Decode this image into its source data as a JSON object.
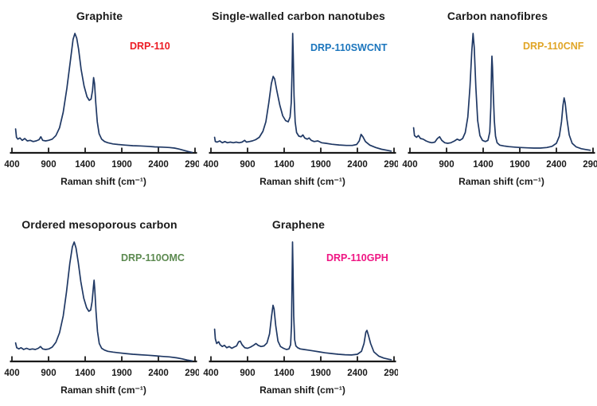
{
  "figure": {
    "background": "#ffffff",
    "curve_color": "#1f3864",
    "axis_color": "#1a1a1a",
    "title_color": "#1a1a1a"
  },
  "chart_data": [
    {
      "type": "line",
      "title": "Graphite",
      "series_label": "DRP-110",
      "series_label_color": "#ec1c24",
      "xlabel": "Raman shift (cm⁻¹)",
      "ylabel": "",
      "x_ticks": [
        400,
        900,
        1400,
        1900,
        2400,
        2900
      ],
      "xlim": [
        400,
        2900
      ],
      "ylim": [
        0,
        1.05
      ],
      "grid": false,
      "points": [
        [
          450,
          0.2
        ],
        [
          462,
          0.13
        ],
        [
          480,
          0.115
        ],
        [
          510,
          0.125
        ],
        [
          540,
          0.105
        ],
        [
          575,
          0.12
        ],
        [
          610,
          0.1
        ],
        [
          650,
          0.105
        ],
        [
          690,
          0.095
        ],
        [
          730,
          0.1
        ],
        [
          770,
          0.11
        ],
        [
          795,
          0.135
        ],
        [
          820,
          0.105
        ],
        [
          860,
          0.1
        ],
        [
          900,
          0.105
        ],
        [
          950,
          0.115
        ],
        [
          1000,
          0.145
        ],
        [
          1050,
          0.21
        ],
        [
          1100,
          0.34
        ],
        [
          1150,
          0.54
        ],
        [
          1200,
          0.78
        ],
        [
          1235,
          0.95
        ],
        [
          1260,
          1.0
        ],
        [
          1285,
          0.96
        ],
        [
          1310,
          0.87
        ],
        [
          1345,
          0.7
        ],
        [
          1385,
          0.56
        ],
        [
          1425,
          0.47
        ],
        [
          1455,
          0.44
        ],
        [
          1480,
          0.45
        ],
        [
          1500,
          0.52
        ],
        [
          1515,
          0.63
        ],
        [
          1528,
          0.58
        ],
        [
          1545,
          0.42
        ],
        [
          1565,
          0.26
        ],
        [
          1590,
          0.16
        ],
        [
          1625,
          0.115
        ],
        [
          1665,
          0.095
        ],
        [
          1710,
          0.085
        ],
        [
          1780,
          0.075
        ],
        [
          1850,
          0.07
        ],
        [
          1950,
          0.065
        ],
        [
          2050,
          0.06
        ],
        [
          2150,
          0.058
        ],
        [
          2250,
          0.055
        ],
        [
          2350,
          0.05
        ],
        [
          2450,
          0.048
        ],
        [
          2550,
          0.045
        ],
        [
          2620,
          0.04
        ],
        [
          2680,
          0.032
        ],
        [
          2740,
          0.022
        ],
        [
          2800,
          0.012
        ],
        [
          2860,
          0.004
        ]
      ]
    },
    {
      "type": "line",
      "title": "Single-walled carbon nanotubes",
      "series_label": "DRP-110SWCNT",
      "series_label_color": "#1c76bd",
      "xlabel": "Raman shift (cm⁻¹)",
      "ylabel": "",
      "x_ticks": [
        400,
        900,
        1400,
        1900,
        2400,
        2900
      ],
      "xlim": [
        400,
        2900
      ],
      "ylim": [
        0,
        1.05
      ],
      "grid": false,
      "points": [
        [
          450,
          0.13
        ],
        [
          460,
          0.095
        ],
        [
          485,
          0.09
        ],
        [
          520,
          0.1
        ],
        [
          555,
          0.085
        ],
        [
          590,
          0.095
        ],
        [
          625,
          0.085
        ],
        [
          665,
          0.09
        ],
        [
          705,
          0.085
        ],
        [
          745,
          0.09
        ],
        [
          785,
          0.085
        ],
        [
          825,
          0.09
        ],
        [
          860,
          0.105
        ],
        [
          885,
          0.09
        ],
        [
          925,
          0.095
        ],
        [
          965,
          0.1
        ],
        [
          1010,
          0.11
        ],
        [
          1060,
          0.13
        ],
        [
          1110,
          0.18
        ],
        [
          1150,
          0.26
        ],
        [
          1190,
          0.42
        ],
        [
          1225,
          0.58
        ],
        [
          1250,
          0.64
        ],
        [
          1270,
          0.62
        ],
        [
          1300,
          0.52
        ],
        [
          1340,
          0.4
        ],
        [
          1380,
          0.31
        ],
        [
          1420,
          0.27
        ],
        [
          1455,
          0.26
        ],
        [
          1480,
          0.3
        ],
        [
          1497,
          0.42
        ],
        [
          1508,
          0.68
        ],
        [
          1516,
          1.0
        ],
        [
          1524,
          0.82
        ],
        [
          1535,
          0.48
        ],
        [
          1550,
          0.26
        ],
        [
          1570,
          0.17
        ],
        [
          1600,
          0.14
        ],
        [
          1630,
          0.135
        ],
        [
          1655,
          0.15
        ],
        [
          1680,
          0.125
        ],
        [
          1715,
          0.115
        ],
        [
          1740,
          0.125
        ],
        [
          1770,
          0.105
        ],
        [
          1810,
          0.095
        ],
        [
          1860,
          0.1
        ],
        [
          1910,
          0.085
        ],
        [
          1970,
          0.08
        ],
        [
          2050,
          0.072
        ],
        [
          2150,
          0.066
        ],
        [
          2250,
          0.062
        ],
        [
          2330,
          0.062
        ],
        [
          2390,
          0.07
        ],
        [
          2425,
          0.1
        ],
        [
          2450,
          0.155
        ],
        [
          2475,
          0.135
        ],
        [
          2510,
          0.095
        ],
        [
          2570,
          0.065
        ],
        [
          2650,
          0.045
        ],
        [
          2730,
          0.03
        ],
        [
          2800,
          0.022
        ],
        [
          2860,
          0.015
        ]
      ]
    },
    {
      "type": "line",
      "title": "Carbon nanofibres",
      "series_label": "DRP-110CNF",
      "series_label_color": "#e0a526",
      "xlabel": "Raman shift (cm⁻¹)",
      "ylabel": "",
      "x_ticks": [
        400,
        900,
        1400,
        1900,
        2400,
        2900
      ],
      "xlim": [
        400,
        2900
      ],
      "ylim": [
        0,
        1.05
      ],
      "grid": false,
      "points": [
        [
          450,
          0.21
        ],
        [
          462,
          0.145
        ],
        [
          490,
          0.13
        ],
        [
          515,
          0.145
        ],
        [
          545,
          0.12
        ],
        [
          580,
          0.115
        ],
        [
          620,
          0.1
        ],
        [
          660,
          0.09
        ],
        [
          700,
          0.085
        ],
        [
          740,
          0.09
        ],
        [
          775,
          0.12
        ],
        [
          805,
          0.135
        ],
        [
          835,
          0.105
        ],
        [
          875,
          0.085
        ],
        [
          915,
          0.08
        ],
        [
          960,
          0.085
        ],
        [
          1010,
          0.1
        ],
        [
          1045,
          0.115
        ],
        [
          1080,
          0.105
        ],
        [
          1120,
          0.12
        ],
        [
          1155,
          0.17
        ],
        [
          1190,
          0.3
        ],
        [
          1220,
          0.55
        ],
        [
          1245,
          0.85
        ],
        [
          1262,
          1.0
        ],
        [
          1278,
          0.88
        ],
        [
          1300,
          0.55
        ],
        [
          1325,
          0.27
        ],
        [
          1355,
          0.145
        ],
        [
          1390,
          0.105
        ],
        [
          1430,
          0.095
        ],
        [
          1465,
          0.105
        ],
        [
          1490,
          0.175
        ],
        [
          1504,
          0.38
        ],
        [
          1514,
          0.7
        ],
        [
          1520,
          0.81
        ],
        [
          1527,
          0.72
        ],
        [
          1538,
          0.5
        ],
        [
          1552,
          0.27
        ],
        [
          1568,
          0.14
        ],
        [
          1590,
          0.085
        ],
        [
          1625,
          0.065
        ],
        [
          1680,
          0.058
        ],
        [
          1750,
          0.052
        ],
        [
          1830,
          0.048
        ],
        [
          1910,
          0.045
        ],
        [
          2000,
          0.042
        ],
        [
          2090,
          0.04
        ],
        [
          2180,
          0.04
        ],
        [
          2270,
          0.045
        ],
        [
          2340,
          0.055
        ],
        [
          2400,
          0.08
        ],
        [
          2440,
          0.14
        ],
        [
          2470,
          0.26
        ],
        [
          2490,
          0.4
        ],
        [
          2505,
          0.46
        ],
        [
          2520,
          0.42
        ],
        [
          2545,
          0.28
        ],
        [
          2575,
          0.15
        ],
        [
          2615,
          0.08
        ],
        [
          2670,
          0.05
        ],
        [
          2740,
          0.035
        ],
        [
          2800,
          0.028
        ],
        [
          2860,
          0.022
        ]
      ]
    },
    {
      "type": "line",
      "title": "Ordered mesoporous carbon",
      "series_label": "DRP-110OMC",
      "series_label_color": "#5c8a50",
      "xlabel": "Raman shift (cm⁻¹)",
      "ylabel": "",
      "x_ticks": [
        400,
        900,
        1400,
        1900,
        2400,
        2900
      ],
      "xlim": [
        400,
        2900
      ],
      "ylim": [
        0,
        1.05
      ],
      "grid": false,
      "points": [
        [
          450,
          0.155
        ],
        [
          465,
          0.115
        ],
        [
          495,
          0.105
        ],
        [
          525,
          0.115
        ],
        [
          560,
          0.1
        ],
        [
          600,
          0.11
        ],
        [
          640,
          0.1
        ],
        [
          680,
          0.105
        ],
        [
          720,
          0.1
        ],
        [
          760,
          0.11
        ],
        [
          790,
          0.125
        ],
        [
          820,
          0.105
        ],
        [
          860,
          0.1
        ],
        [
          905,
          0.105
        ],
        [
          950,
          0.12
        ],
        [
          1000,
          0.16
        ],
        [
          1050,
          0.24
        ],
        [
          1100,
          0.38
        ],
        [
          1145,
          0.58
        ],
        [
          1190,
          0.82
        ],
        [
          1225,
          0.96
        ],
        [
          1250,
          1.0
        ],
        [
          1275,
          0.95
        ],
        [
          1305,
          0.83
        ],
        [
          1340,
          0.67
        ],
        [
          1380,
          0.53
        ],
        [
          1420,
          0.45
        ],
        [
          1450,
          0.42
        ],
        [
          1475,
          0.43
        ],
        [
          1495,
          0.5
        ],
        [
          1512,
          0.62
        ],
        [
          1522,
          0.68
        ],
        [
          1532,
          0.6
        ],
        [
          1548,
          0.42
        ],
        [
          1568,
          0.25
        ],
        [
          1592,
          0.15
        ],
        [
          1625,
          0.11
        ],
        [
          1665,
          0.095
        ],
        [
          1710,
          0.085
        ],
        [
          1780,
          0.078
        ],
        [
          1860,
          0.072
        ],
        [
          1950,
          0.066
        ],
        [
          2050,
          0.06
        ],
        [
          2150,
          0.056
        ],
        [
          2250,
          0.052
        ],
        [
          2350,
          0.047
        ],
        [
          2450,
          0.042
        ],
        [
          2550,
          0.038
        ],
        [
          2650,
          0.03
        ],
        [
          2720,
          0.022
        ],
        [
          2790,
          0.012
        ],
        [
          2860,
          0.005
        ]
      ]
    },
    {
      "type": "line",
      "title": "Graphene",
      "series_label": "DRP-110GPH",
      "series_label_color": "#ef1583",
      "xlabel": "Raman shift (cm⁻¹)",
      "ylabel": "",
      "x_ticks": [
        400,
        900,
        1400,
        1900,
        2400,
        2900
      ],
      "xlim": [
        400,
        2900
      ],
      "ylim": [
        0,
        1.05
      ],
      "grid": false,
      "points": [
        [
          450,
          0.27
        ],
        [
          460,
          0.19
        ],
        [
          478,
          0.15
        ],
        [
          505,
          0.165
        ],
        [
          525,
          0.14
        ],
        [
          555,
          0.125
        ],
        [
          585,
          0.135
        ],
        [
          615,
          0.115
        ],
        [
          650,
          0.125
        ],
        [
          685,
          0.11
        ],
        [
          715,
          0.12
        ],
        [
          750,
          0.13
        ],
        [
          778,
          0.165
        ],
        [
          800,
          0.17
        ],
        [
          825,
          0.14
        ],
        [
          862,
          0.115
        ],
        [
          900,
          0.11
        ],
        [
          940,
          0.12
        ],
        [
          980,
          0.135
        ],
        [
          1015,
          0.15
        ],
        [
          1045,
          0.135
        ],
        [
          1085,
          0.125
        ],
        [
          1125,
          0.13
        ],
        [
          1165,
          0.155
        ],
        [
          1200,
          0.23
        ],
        [
          1228,
          0.38
        ],
        [
          1248,
          0.47
        ],
        [
          1262,
          0.44
        ],
        [
          1285,
          0.3
        ],
        [
          1315,
          0.17
        ],
        [
          1350,
          0.125
        ],
        [
          1390,
          0.11
        ],
        [
          1430,
          0.1
        ],
        [
          1465,
          0.105
        ],
        [
          1488,
          0.14
        ],
        [
          1500,
          0.3
        ],
        [
          1509,
          0.72
        ],
        [
          1514,
          1.0
        ],
        [
          1521,
          0.78
        ],
        [
          1530,
          0.38
        ],
        [
          1543,
          0.18
        ],
        [
          1560,
          0.13
        ],
        [
          1585,
          0.115
        ],
        [
          1620,
          0.105
        ],
        [
          1670,
          0.1
        ],
        [
          1730,
          0.095
        ],
        [
          1800,
          0.088
        ],
        [
          1880,
          0.08
        ],
        [
          1960,
          0.072
        ],
        [
          2050,
          0.066
        ],
        [
          2140,
          0.06
        ],
        [
          2230,
          0.056
        ],
        [
          2320,
          0.054
        ],
        [
          2400,
          0.06
        ],
        [
          2455,
          0.085
        ],
        [
          2490,
          0.15
        ],
        [
          2515,
          0.245
        ],
        [
          2530,
          0.26
        ],
        [
          2550,
          0.22
        ],
        [
          2580,
          0.15
        ],
        [
          2625,
          0.08
        ],
        [
          2690,
          0.045
        ],
        [
          2760,
          0.028
        ],
        [
          2830,
          0.018
        ],
        [
          2860,
          0.015
        ]
      ]
    }
  ]
}
